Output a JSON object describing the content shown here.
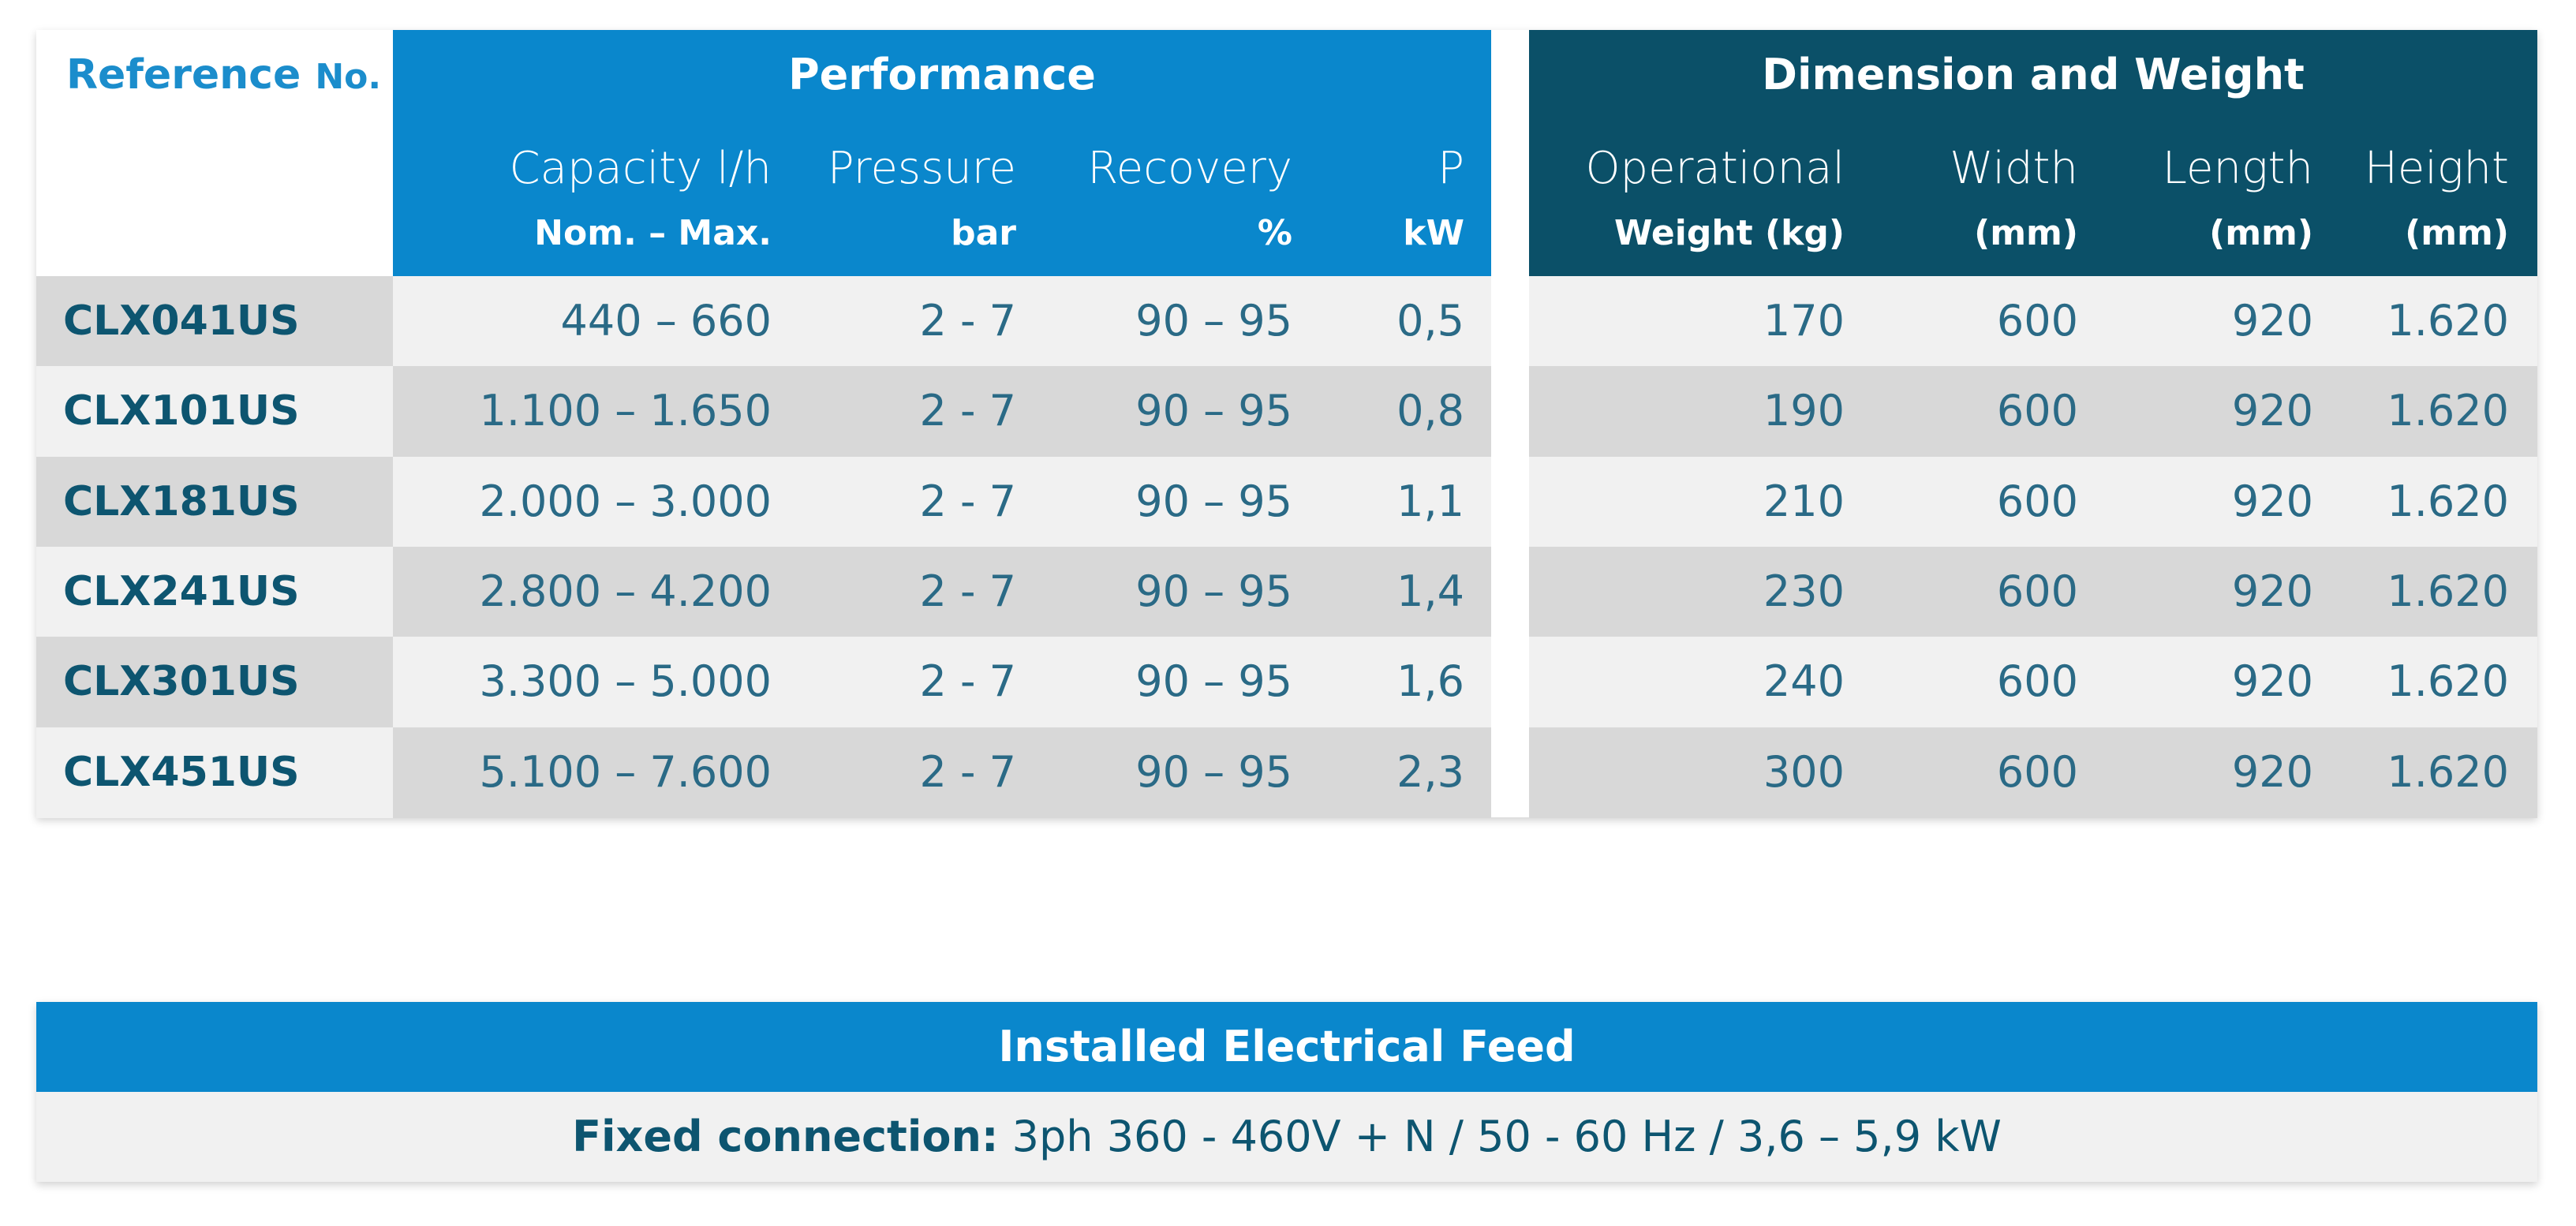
{
  "headers": {
    "reference": "Reference",
    "reference_no": "No.",
    "performance": "Performance",
    "dimension": "Dimension and Weight"
  },
  "columns": {
    "capacity": {
      "label": "Capacity l/h",
      "unit": "Nom. – Max."
    },
    "pressure": {
      "label": "Pressure",
      "unit": "bar"
    },
    "recovery": {
      "label": "Recovery",
      "unit": "%"
    },
    "power": {
      "label": "P",
      "unit": "kW"
    },
    "weight": {
      "label": "Operational",
      "unit": "Weight (kg)"
    },
    "width": {
      "label": "Width",
      "unit": "(mm)"
    },
    "length": {
      "label": "Length",
      "unit": "(mm)"
    },
    "height": {
      "label": "Height",
      "unit": "(mm)"
    }
  },
  "rows": [
    {
      "model": "CLX041US",
      "capacity": "440 – 660",
      "pressure": "2 - 7",
      "recovery": "90 – 95",
      "power": "0,5",
      "weight": "170",
      "width": "600",
      "length": "920",
      "height": "1.620"
    },
    {
      "model": "CLX101US",
      "capacity": "1.100 – 1.650",
      "pressure": "2 - 7",
      "recovery": "90 – 95",
      "power": "0,8",
      "weight": "190",
      "width": "600",
      "length": "920",
      "height": "1.620"
    },
    {
      "model": "CLX181US",
      "capacity": "2.000 – 3.000",
      "pressure": "2 - 7",
      "recovery": "90 – 95",
      "power": "1,1",
      "weight": "210",
      "width": "600",
      "length": "920",
      "height": "1.620"
    },
    {
      "model": "CLX241US",
      "capacity": "2.800 – 4.200",
      "pressure": "2 - 7",
      "recovery": "90 – 95",
      "power": "1,4",
      "weight": "230",
      "width": "600",
      "length": "920",
      "height": "1.620"
    },
    {
      "model": "CLX301US",
      "capacity": "3.300 – 5.000",
      "pressure": "2 - 7",
      "recovery": "90 – 95",
      "power": "1,6",
      "weight": "240",
      "width": "600",
      "length": "920",
      "height": "1.620"
    },
    {
      "model": "CLX451US",
      "capacity": "5.100 – 7.600",
      "pressure": "2 - 7",
      "recovery": "90 – 95",
      "power": "2,3",
      "weight": "300",
      "width": "600",
      "length": "920",
      "height": "1.620"
    }
  ],
  "electrical": {
    "title": "Installed Electrical Feed",
    "label": "Fixed connection:",
    "value": "3ph 360 - 460V + N / 50 - 60 Hz / 3,6 – 5,9 kW"
  },
  "colors": {
    "performance_header": "#0a87cc",
    "dimension_header": "#0b5068",
    "row_light": "#f1f1f1",
    "row_dark": "#d8d8d8",
    "text_dark": "#0d5570",
    "reference_title": "#1b8dcc"
  }
}
